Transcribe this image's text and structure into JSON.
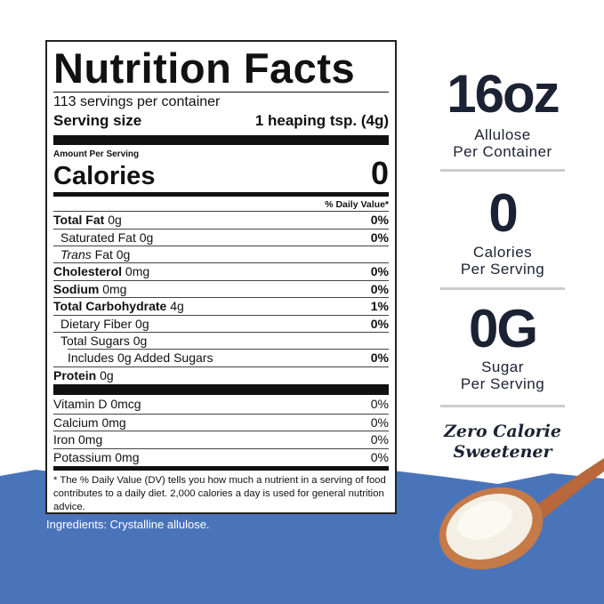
{
  "label": {
    "title": "Nutrition Facts",
    "servings": "113 servings per container",
    "serving_size_label": "Serving size",
    "serving_size_value": "1 heaping tsp. (4g)",
    "amount_per_serving": "Amount Per Serving",
    "calories_label": "Calories",
    "calories_value": "0",
    "dv_header": "% Daily Value*",
    "rows": [
      {
        "name": "Total Fat",
        "amount": "0g",
        "dv": "0%"
      },
      {
        "name": "Saturated Fat",
        "amount": "0g",
        "dv": "0%"
      },
      {
        "name_italic": "Trans",
        "name": "Fat",
        "amount": "0g"
      },
      {
        "name": "Cholesterol",
        "amount": "0mg",
        "dv": "0%"
      },
      {
        "name": "Sodium",
        "amount": "0mg",
        "dv": "0%"
      },
      {
        "name": "Total Carbohydrate",
        "amount": "4g",
        "dv": "1%"
      },
      {
        "name": "Dietary Fiber",
        "amount": "0g",
        "dv": "0%"
      },
      {
        "name": "Total Sugars",
        "amount": "0g"
      },
      {
        "name": "Includes 0g Added Sugars",
        "dv": "0%"
      },
      {
        "name": "Protein",
        "amount": "0g"
      }
    ],
    "vitamins": [
      {
        "name": "Vitamin D",
        "amount": "0mcg",
        "dv": "0%"
      },
      {
        "name": "Calcium",
        "amount": "0mg",
        "dv": "0%"
      },
      {
        "name": "Iron",
        "amount": "0mg",
        "dv": "0%"
      },
      {
        "name": "Potassium",
        "amount": "0mg",
        "dv": "0%"
      }
    ],
    "footnote": "* The % Daily Value (DV) tells you how much a nutrient in a serving of food contributes to a daily diet. 2,000 calories a day is used for general nutrition advice."
  },
  "ingredients": "Ingredients: Crystalline allulose.",
  "stats": [
    {
      "value": "16oz",
      "line1": "Allulose",
      "line2": "Per Container"
    },
    {
      "value": "0",
      "line1": "Calories",
      "line2": "Per Serving"
    },
    {
      "value": "0G",
      "line1": "Sugar",
      "line2": "Per Serving"
    }
  ],
  "tagline": [
    "Zero Calorie",
    "Sweetener"
  ]
}
